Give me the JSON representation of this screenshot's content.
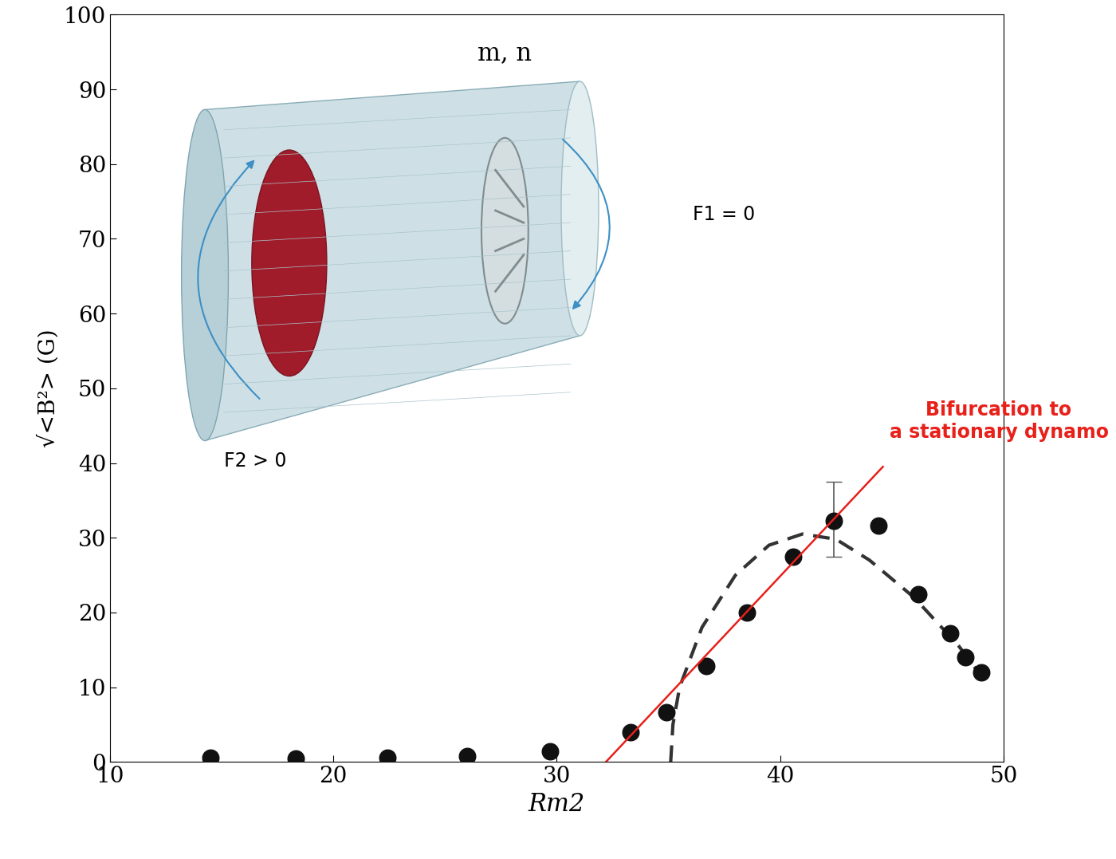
{
  "chart_data": {
    "type": "scatter",
    "x_label": "Rm2",
    "y_label": "√<B²> (G)",
    "xlim": [
      10,
      50
    ],
    "ylim": [
      0,
      100
    ],
    "xticks": [
      10,
      20,
      30,
      40,
      50
    ],
    "yticks": [
      0,
      10,
      20,
      30,
      40,
      50,
      60,
      70,
      80,
      90,
      100
    ],
    "x": [
      14.5,
      18.3,
      22.4,
      26.0,
      29.7,
      33.3,
      34.9,
      36.7,
      38.5,
      40.6,
      42.4,
      44.4,
      46.2,
      47.6,
      48.3,
      49.0
    ],
    "values": [
      0.6,
      0.5,
      0.6,
      0.8,
      1.4,
      4.0,
      6.7,
      12.8,
      20.0,
      27.5,
      32.3,
      31.6,
      22.4,
      17.2,
      14.0,
      12.0
    ],
    "color": "#111111",
    "marker": "circle",
    "error_bars": [
      {
        "x": 42.4,
        "low": 27.5,
        "high": 37.5
      }
    ],
    "fit_curve": {
      "x": [
        35.1,
        35.2,
        35.5,
        36.5,
        38.0,
        39.5,
        41.0,
        42.5,
        44.0,
        46.0,
        48.0,
        49.0
      ],
      "values": [
        0,
        5,
        10,
        18,
        25,
        29,
        30.5,
        29.8,
        27,
        22,
        15.5,
        11.5
      ],
      "color": "#333333",
      "line_style": "dashed"
    },
    "trend_line": {
      "x": [
        32.2,
        44.6
      ],
      "values": [
        0,
        39.5
      ],
      "color": "#e8201a",
      "line_style": "solid"
    },
    "annotations": [
      {
        "text": "Bifurcation to\na stationary dynamo",
        "color": "#e8201a"
      }
    ],
    "inset_labels": [
      "m, n",
      "F1 = 0",
      "F2 > 0"
    ]
  }
}
